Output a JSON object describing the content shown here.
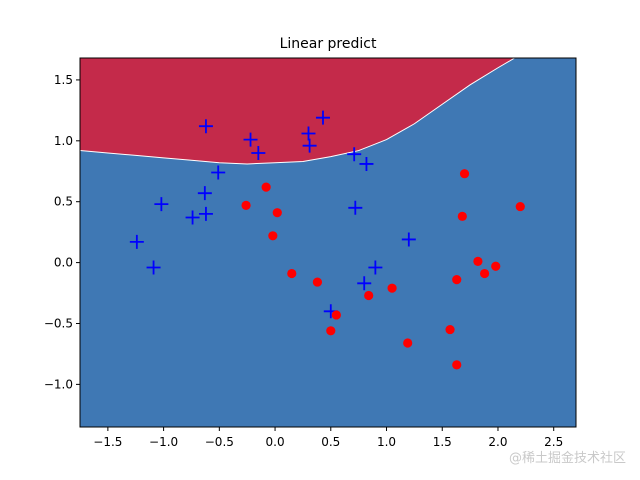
{
  "chart_data": {
    "type": "scatter",
    "title": "Linear predict",
    "xlabel": "",
    "ylabel": "",
    "xlim": [
      -1.75,
      2.7
    ],
    "ylim": [
      -1.35,
      1.68
    ],
    "x_ticks": [
      -1.5,
      -1.0,
      -0.5,
      0.0,
      0.5,
      1.0,
      1.5,
      2.0,
      2.5
    ],
    "x_tick_labels": [
      "−1.5",
      "−1.0",
      "−0.5",
      "0.0",
      "0.5",
      "1.0",
      "1.5",
      "2.0",
      "2.5"
    ],
    "y_ticks": [
      -1.0,
      -0.5,
      0.0,
      0.5,
      1.0,
      1.5
    ],
    "y_tick_labels": [
      "−1.0",
      "−0.5",
      "0.0",
      "0.5",
      "1.0",
      "1.5"
    ],
    "grid": false,
    "legend": "none",
    "regions": {
      "upper_color": "#c42a4a",
      "lower_color": "#3f78b4",
      "boundary_points": [
        [
          -1.75,
          0.92
        ],
        [
          -1.5,
          0.9
        ],
        [
          -1.25,
          0.88
        ],
        [
          -1.0,
          0.86
        ],
        [
          -0.75,
          0.84
        ],
        [
          -0.5,
          0.82
        ],
        [
          -0.25,
          0.81
        ],
        [
          0.0,
          0.82
        ],
        [
          0.25,
          0.83
        ],
        [
          0.5,
          0.87
        ],
        [
          0.75,
          0.92
        ],
        [
          1.0,
          1.01
        ],
        [
          1.25,
          1.14
        ],
        [
          1.5,
          1.3
        ],
        [
          1.75,
          1.46
        ],
        [
          2.0,
          1.6
        ],
        [
          2.15,
          1.68
        ]
      ]
    },
    "series": [
      {
        "marker": "plus",
        "color": "#0000ff",
        "points": [
          [
            -1.24,
            0.17
          ],
          [
            -1.09,
            -0.04
          ],
          [
            -1.02,
            0.48
          ],
          [
            -0.74,
            0.37
          ],
          [
            -0.63,
            0.57
          ],
          [
            -0.62,
            0.4
          ],
          [
            -0.62,
            1.12
          ],
          [
            -0.51,
            0.74
          ],
          [
            -0.22,
            1.01
          ],
          [
            -0.15,
            0.9
          ],
          [
            0.3,
            1.06
          ],
          [
            0.31,
            0.96
          ],
          [
            0.43,
            1.19
          ],
          [
            0.5,
            -0.4
          ],
          [
            0.71,
            0.89
          ],
          [
            0.72,
            0.45
          ],
          [
            0.8,
            -0.17
          ],
          [
            0.82,
            0.81
          ],
          [
            0.9,
            -0.04
          ],
          [
            1.2,
            0.19
          ]
        ]
      },
      {
        "marker": "circle",
        "color": "#ff0000",
        "points": [
          [
            -0.26,
            0.47
          ],
          [
            -0.08,
            0.62
          ],
          [
            -0.02,
            0.22
          ],
          [
            0.02,
            0.41
          ],
          [
            0.15,
            -0.09
          ],
          [
            0.38,
            -0.16
          ],
          [
            0.5,
            -0.56
          ],
          [
            0.55,
            -0.43
          ],
          [
            0.84,
            -0.27
          ],
          [
            1.05,
            -0.21
          ],
          [
            1.19,
            -0.66
          ],
          [
            1.57,
            -0.55
          ],
          [
            1.63,
            -0.84
          ],
          [
            1.63,
            -0.14
          ],
          [
            1.68,
            0.38
          ],
          [
            1.7,
            0.73
          ],
          [
            1.82,
            0.01
          ],
          [
            1.88,
            -0.09
          ],
          [
            1.98,
            -0.03
          ],
          [
            2.2,
            0.46
          ]
        ]
      }
    ],
    "colors": {
      "plus": "#0000ff",
      "circle": "#ff0000"
    }
  },
  "watermark": "@稀土掘金技术社区"
}
